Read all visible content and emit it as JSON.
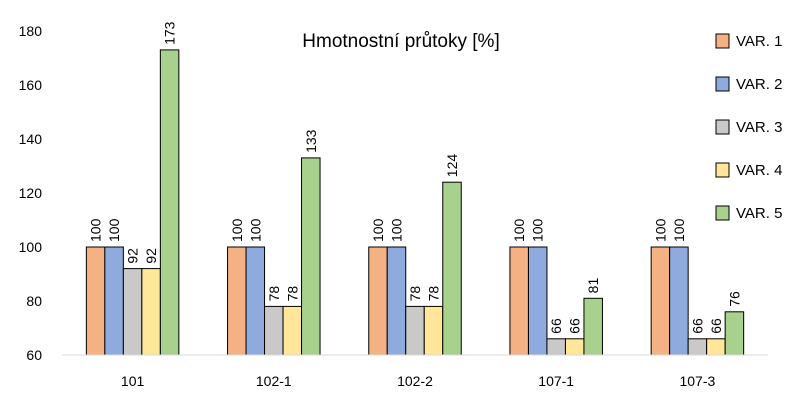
{
  "chart_data": {
    "type": "bar",
    "title": "Hmotnostní průtoky [%]",
    "xlabel": "",
    "ylabel": "",
    "ylim": [
      60,
      180
    ],
    "yticks": [
      60,
      80,
      100,
      120,
      140,
      160,
      180
    ],
    "grid": false,
    "legend_position": "right",
    "categories": [
      "101",
      "102-1",
      "102-2",
      "107-1",
      "107-3"
    ],
    "series": [
      {
        "name": "VAR. 1",
        "color": "#f4b183",
        "values": [
          100,
          100,
          100,
          100,
          100
        ]
      },
      {
        "name": "VAR. 2",
        "color": "#8faadc",
        "values": [
          100,
          100,
          100,
          100,
          100
        ]
      },
      {
        "name": "VAR. 3",
        "color": "#c9c9c9",
        "values": [
          92,
          78,
          78,
          66,
          66
        ]
      },
      {
        "name": "VAR. 4",
        "color": "#ffe699",
        "values": [
          92,
          78,
          78,
          66,
          66
        ]
      },
      {
        "name": "VAR. 5",
        "color": "#a9d18e",
        "values": [
          173,
          133,
          124,
          81,
          76
        ]
      }
    ]
  }
}
